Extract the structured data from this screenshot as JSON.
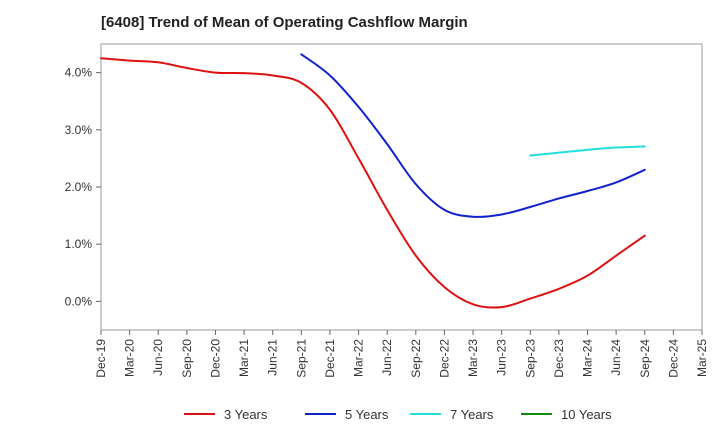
{
  "chart_data": {
    "type": "line",
    "title": "[6408]  Trend of Mean of Operating Cashflow Margin",
    "xlabel": "",
    "ylabel": "",
    "x": [
      "Dec-19",
      "Mar-20",
      "Jun-20",
      "Sep-20",
      "Dec-20",
      "Mar-21",
      "Jun-21",
      "Sep-21",
      "Dec-21",
      "Mar-22",
      "Jun-22",
      "Sep-22",
      "Dec-22",
      "Mar-23",
      "Jun-23",
      "Sep-23",
      "Dec-23",
      "Mar-24",
      "Jun-24",
      "Sep-24",
      "Dec-24",
      "Mar-25"
    ],
    "ylim": [
      -0.5,
      4.5
    ],
    "yticks": [
      0.0,
      1.0,
      2.0,
      3.0,
      4.0
    ],
    "ytick_labels": [
      "0.0%",
      "1.0%",
      "2.0%",
      "3.0%",
      "4.0%"
    ],
    "grid": true,
    "legend_position": "bottom",
    "series": [
      {
        "name": "3 Years",
        "color": "#dd1111",
        "values": [
          4.25,
          4.21,
          4.18,
          4.08,
          4.0,
          3.99,
          3.95,
          3.82,
          3.35,
          2.5,
          1.6,
          0.8,
          0.25,
          -0.05,
          -0.1,
          0.05,
          0.22,
          0.45,
          0.8,
          1.15,
          null,
          null
        ]
      },
      {
        "name": "5 Years",
        "color": "#1122cc",
        "values": [
          null,
          null,
          null,
          null,
          null,
          null,
          null,
          4.32,
          3.95,
          3.4,
          2.75,
          2.05,
          1.6,
          1.48,
          1.52,
          1.65,
          1.8,
          1.93,
          2.08,
          2.3,
          null,
          null
        ]
      },
      {
        "name": "7 Years",
        "color": "#22dddd",
        "values": [
          null,
          null,
          null,
          null,
          null,
          null,
          null,
          null,
          null,
          null,
          null,
          null,
          null,
          null,
          null,
          2.55,
          2.6,
          2.65,
          2.69,
          2.71,
          null,
          null
        ]
      },
      {
        "name": "10 Years",
        "color": "#118811",
        "values": [
          null,
          null,
          null,
          null,
          null,
          null,
          null,
          null,
          null,
          null,
          null,
          null,
          null,
          null,
          null,
          null,
          null,
          null,
          null,
          null,
          null,
          null
        ]
      }
    ]
  }
}
